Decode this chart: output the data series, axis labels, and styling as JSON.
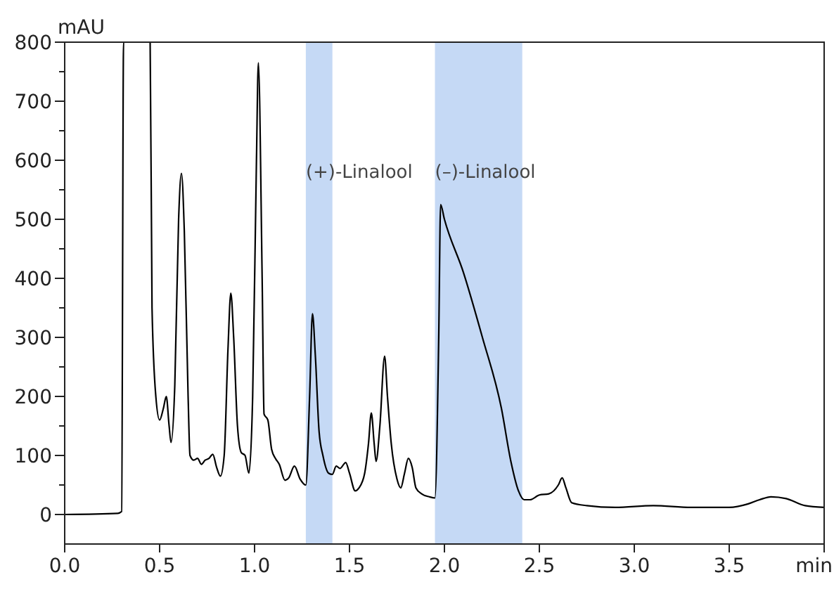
{
  "chart_data": {
    "type": "line",
    "ylabel": "mAU",
    "x": [
      0,
      0.28,
      0.3,
      0.31,
      0.45,
      0.46,
      0.48,
      0.5,
      0.52,
      0.535,
      0.55,
      0.56,
      0.58,
      0.6,
      0.615,
      0.63,
      0.65,
      0.66,
      0.68,
      0.7,
      0.72,
      0.74,
      0.76,
      0.78,
      0.8,
      0.82,
      0.84,
      0.86,
      0.875,
      0.89,
      0.91,
      0.93,
      0.95,
      0.97,
      0.99,
      1.01,
      1.02,
      1.04,
      1.05,
      1.07,
      1.09,
      1.11,
      1.13,
      1.16,
      1.18,
      1.21,
      1.24,
      1.27,
      1.29,
      1.305,
      1.32,
      1.34,
      1.36,
      1.39,
      1.41,
      1.43,
      1.45,
      1.48,
      1.5,
      1.53,
      1.55,
      1.58,
      1.6,
      1.615,
      1.63,
      1.64,
      1.66,
      1.685,
      1.7,
      1.72,
      1.75,
      1.77,
      1.79,
      1.81,
      1.83,
      1.85,
      1.88,
      1.92,
      1.95,
      1.97,
      1.98,
      2.0,
      2.1,
      2.2,
      2.3,
      2.35,
      2.39,
      2.42,
      2.45,
      2.5,
      2.55,
      2.6,
      2.62,
      2.64,
      2.67,
      2.75,
      2.9,
      3.1,
      3.3,
      3.5,
      3.6,
      3.66,
      3.72,
      3.8,
      3.9,
      4.0
    ],
    "series": [
      {
        "color": "#000000",
        "values": [
          0,
          2,
          5,
          800,
          800,
          350,
          200,
          160,
          180,
          200,
          150,
          122,
          220,
          500,
          578,
          480,
          200,
          100,
          92,
          95,
          85,
          92,
          95,
          102,
          80,
          65,
          100,
          280,
          375,
          300,
          150,
          105,
          100,
          70,
          200,
          600,
          765,
          400,
          170,
          160,
          110,
          95,
          85,
          58,
          62,
          82,
          60,
          50,
          200,
          340,
          270,
          140,
          100,
          70,
          68,
          82,
          78,
          88,
          70,
          40,
          45,
          70,
          120,
          172,
          120,
          90,
          150,
          268,
          200,
          120,
          60,
          45,
          70,
          95,
          80,
          45,
          35,
          30,
          28,
          300,
          525,
          500,
          410,
          300,
          180,
          90,
          40,
          25,
          25,
          33,
          35,
          50,
          62,
          45,
          20,
          15,
          12,
          15,
          12,
          12,
          18,
          25,
          30,
          27,
          15,
          12
        ]
      }
    ],
    "xlim": [
      0,
      4.0
    ],
    "xticks": [
      {
        "value": 0,
        "label": "0.0"
      },
      {
        "value": 0.5,
        "label": "0.5"
      },
      {
        "value": 1,
        "label": "1.0"
      },
      {
        "value": 1.5,
        "label": "1.5"
      },
      {
        "value": 2,
        "label": "2.0"
      },
      {
        "value": 2.5,
        "label": "2.5"
      },
      {
        "value": 3,
        "label": "3.0"
      },
      {
        "value": 3.5,
        "label": "3.5"
      },
      {
        "value": 4,
        "label": "min"
      }
    ],
    "ylim": [
      -50,
      800
    ],
    "yticks": [
      0,
      {
        "value": 50,
        "label": null
      },
      100,
      {
        "value": 150,
        "label": null
      },
      200,
      {
        "value": 250,
        "label": null
      },
      300,
      {
        "value": 350,
        "label": null
      },
      400,
      {
        "value": 450,
        "label": null
      },
      500,
      {
        "value": 550,
        "label": null
      },
      600,
      {
        "value": 650,
        "label": null
      },
      700,
      {
        "value": 750,
        "label": null
      },
      800
    ],
    "bands": [
      {
        "axis": "x",
        "from": 1.27,
        "to": 1.41,
        "label": "(+)-Linalool",
        "color": "#c5d9f5"
      },
      {
        "axis": "x",
        "from": 1.95,
        "to": 2.41,
        "label": "(–)-Linalool",
        "color": "#c5d9f5"
      }
    ],
    "grid": false,
    "line_style": "solid",
    "marker": "none"
  }
}
